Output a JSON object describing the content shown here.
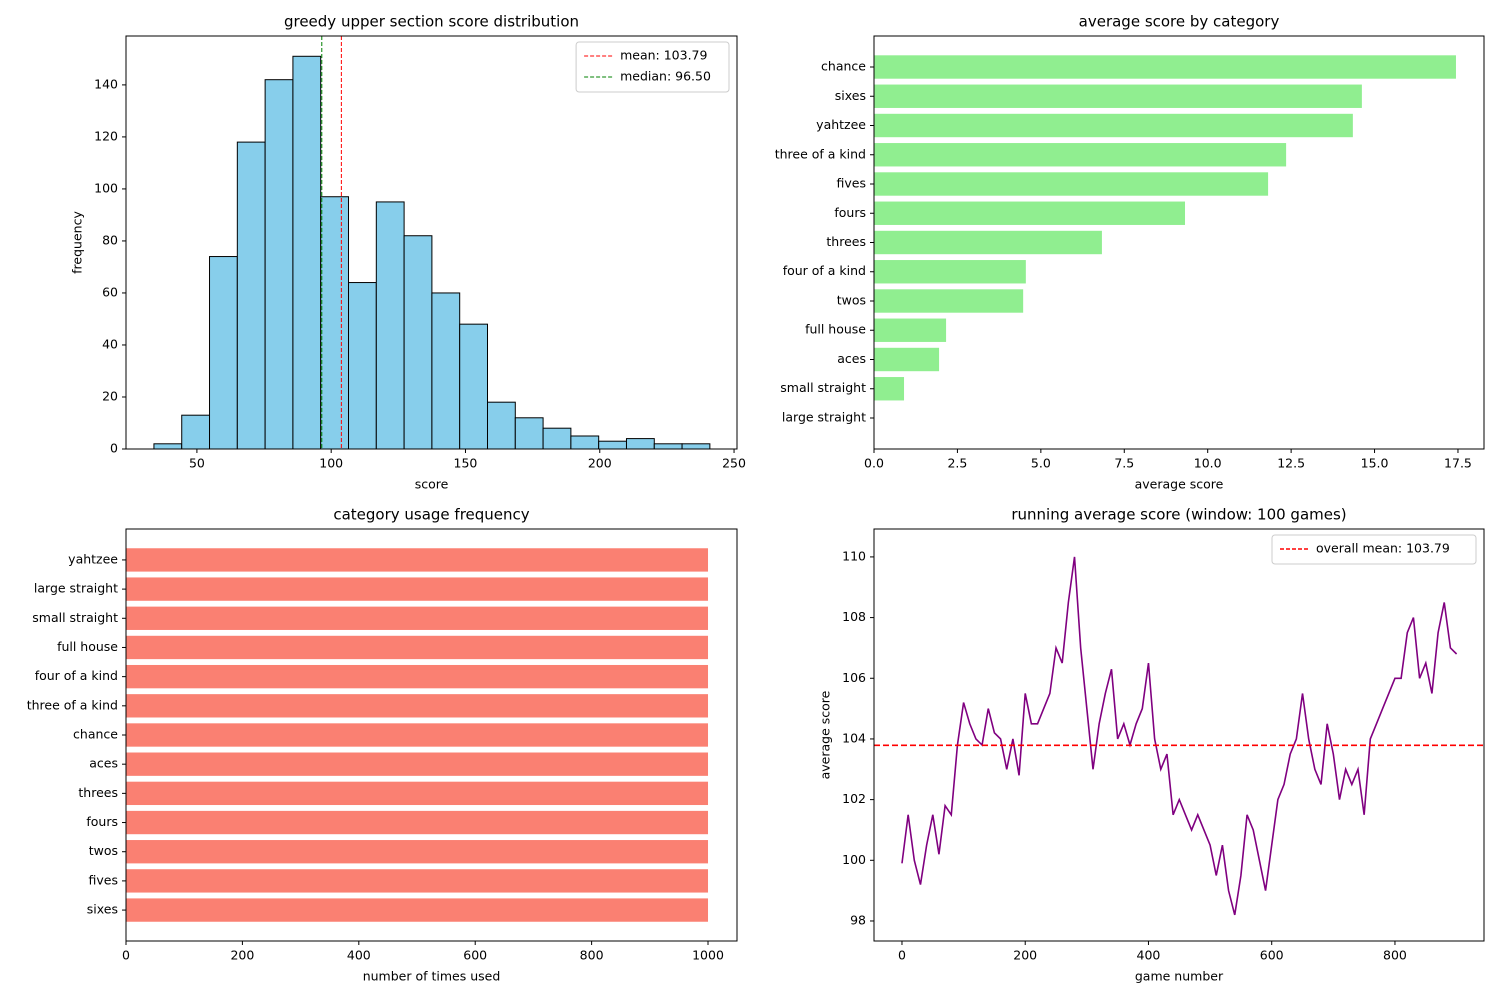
{
  "chart_data": [
    {
      "type": "histogram",
      "title": "greedy upper section score distribution",
      "xlabel": "score",
      "ylabel": "frequency",
      "bins": [
        34,
        44.35,
        54.7,
        65.05,
        75.4,
        85.75,
        96.1,
        106.45,
        116.8,
        127.15,
        137.5,
        147.85,
        158.2,
        168.55,
        178.9,
        189.25,
        199.6,
        209.95,
        220.3,
        230.65,
        241
      ],
      "counts": [
        2,
        13,
        74,
        118,
        142,
        151,
        97,
        64,
        95,
        82,
        60,
        48,
        18,
        12,
        8,
        5,
        3,
        4,
        2,
        2
      ],
      "color": "#87ceeb",
      "edgecolor": "#000000",
      "xlim": [
        23.6,
        251.1
      ],
      "xticks": [
        50,
        100,
        150,
        200,
        250
      ],
      "ylim": [
        0,
        158.8
      ],
      "yticks": [
        0,
        20,
        40,
        60,
        80,
        100,
        120,
        140
      ],
      "vlines": [
        {
          "label": "mean: 103.79",
          "value": 103.79,
          "color": "#ff0000"
        },
        {
          "label": "median: 96.50",
          "value": 96.5,
          "color": "#008000"
        }
      ],
      "legend": "upper right"
    },
    {
      "type": "barh",
      "title": "average score by category",
      "xlabel": "average score",
      "categories": [
        "chance",
        "sixes",
        "yahtzee",
        "three of a kind",
        "fives",
        "fours",
        "threes",
        "four of a kind",
        "twos",
        "full house",
        "aces",
        "small straight",
        "large straight"
      ],
      "values": [
        17.44,
        14.62,
        14.35,
        12.35,
        11.81,
        9.32,
        6.83,
        4.55,
        4.47,
        2.16,
        1.95,
        0.9,
        0
      ],
      "color": "#90ee90",
      "xlim": [
        0,
        18.28
      ],
      "xticks": [
        {
          "value": 0,
          "label": "0.0"
        },
        2.5,
        {
          "value": 5,
          "label": "5.0"
        },
        7.5,
        {
          "value": 10,
          "label": "10.0"
        },
        12.5,
        {
          "value": 15,
          "label": "15.0"
        },
        17.5
      ]
    },
    {
      "type": "barh",
      "title": "category usage frequency",
      "xlabel": "number of times used",
      "categories": [
        "yahtzee",
        "large straight",
        "small straight",
        "full house",
        "four of a kind",
        "three of a kind",
        "chance",
        "aces",
        "threes",
        "fours",
        "twos",
        "fives",
        "sixes"
      ],
      "values": [
        1000,
        1000,
        1000,
        1000,
        1000,
        1000,
        1000,
        1000,
        1000,
        1000,
        1000,
        1000,
        1000
      ],
      "color": "#fa8072",
      "xlim": [
        0,
        1049.8
      ],
      "xticks": [
        0,
        200,
        400,
        600,
        800,
        1000
      ]
    },
    {
      "type": "line",
      "title": "running average score (window: 100 games)",
      "xlabel": "game number",
      "ylabel": "average score",
      "x": [
        0,
        10,
        20,
        30,
        40,
        50,
        60,
        70,
        80,
        90,
        100,
        110,
        120,
        130,
        140,
        150,
        160,
        170,
        180,
        190,
        200,
        210,
        220,
        230,
        240,
        250,
        260,
        270,
        280,
        290,
        300,
        310,
        320,
        330,
        340,
        350,
        360,
        370,
        380,
        390,
        400,
        410,
        420,
        430,
        440,
        450,
        460,
        470,
        480,
        490,
        500,
        510,
        520,
        530,
        540,
        550,
        560,
        570,
        580,
        590,
        600,
        610,
        620,
        630,
        640,
        650,
        660,
        670,
        680,
        690,
        700,
        710,
        720,
        730,
        740,
        750,
        760,
        770,
        780,
        790,
        800,
        810,
        820,
        830,
        840,
        850,
        860,
        870,
        880,
        890,
        900
      ],
      "values": [
        99.9,
        101.5,
        100.0,
        99.2,
        100.5,
        101.5,
        100.2,
        101.8,
        101.5,
        103.8,
        105.2,
        104.5,
        104.0,
        103.8,
        105.0,
        104.2,
        104.0,
        103.0,
        104.0,
        102.8,
        105.5,
        104.5,
        104.5,
        105.0,
        105.5,
        107.0,
        106.5,
        108.5,
        110.0,
        107.0,
        105.0,
        103.0,
        104.5,
        105.5,
        106.3,
        104.0,
        104.5,
        103.8,
        104.5,
        105.0,
        106.5,
        104.0,
        103.0,
        103.5,
        101.5,
        102.0,
        101.5,
        101.0,
        101.5,
        101.0,
        100.5,
        99.5,
        100.5,
        99.0,
        98.2,
        99.5,
        101.5,
        101.0,
        100.0,
        99.0,
        100.5,
        102.0,
        102.5,
        103.5,
        104.0,
        105.5,
        104.0,
        103.0,
        102.5,
        104.5,
        103.5,
        102.0,
        103.0,
        102.5,
        103.0,
        101.5,
        104.0,
        104.5,
        105.0,
        105.5,
        106.0,
        106.0,
        107.5,
        108.0,
        106.0,
        106.5,
        105.5,
        107.5,
        108.5,
        107.0,
        106.8
      ],
      "color": "#800080",
      "xlim": [
        -45.4,
        944.5
      ],
      "xticks": [
        0,
        200,
        400,
        600,
        800
      ],
      "ylim": [
        97.34,
        110.92
      ],
      "yticks": [
        98,
        100,
        102,
        104,
        106,
        108,
        110
      ],
      "hlines": [
        {
          "label": "overall mean: 103.79",
          "value": 103.79,
          "color": "#ff0000"
        }
      ],
      "legend": "upper right"
    }
  ]
}
